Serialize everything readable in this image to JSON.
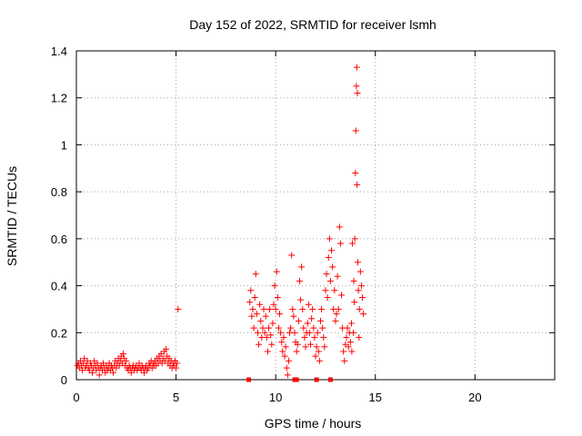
{
  "chart_data": {
    "type": "scatter",
    "title": "Day 152 of 2022, SRMTID for receiver lsmh",
    "xlabel": "GPS time / hours",
    "ylabel": "SRMTID / TECUs",
    "xlim": [
      0,
      24
    ],
    "ylim": [
      0,
      1.4
    ],
    "x_ticks": [
      0,
      5,
      10,
      15,
      20
    ],
    "x_tick_labels": [
      "0",
      "5",
      "10",
      "15",
      "20"
    ],
    "y_ticks": [
      0,
      0.2,
      0.4,
      0.6,
      0.8,
      1.0,
      1.2,
      1.4
    ],
    "y_tick_labels": [
      "0",
      "0.2",
      "0.4",
      "0.6",
      "0.8",
      "1",
      "1.2",
      "1.4"
    ],
    "grid": true,
    "marker": "+",
    "color": "#ff0000",
    "series": [
      {
        "name": "SRMTID",
        "points": [
          [
            0.05,
            0.06
          ],
          [
            0.1,
            0.07
          ],
          [
            0.15,
            0.05
          ],
          [
            0.2,
            0.08
          ],
          [
            0.25,
            0.06
          ],
          [
            0.3,
            0.04
          ],
          [
            0.35,
            0.07
          ],
          [
            0.4,
            0.09
          ],
          [
            0.45,
            0.05
          ],
          [
            0.5,
            0.06
          ],
          [
            0.55,
            0.08
          ],
          [
            0.6,
            0.05
          ],
          [
            0.65,
            0.04
          ],
          [
            0.7,
            0.07
          ],
          [
            0.75,
            0.06
          ],
          [
            0.8,
            0.03
          ],
          [
            0.85,
            0.05
          ],
          [
            0.9,
            0.08
          ],
          [
            0.95,
            0.06
          ],
          [
            1.0,
            0.04
          ],
          [
            1.05,
            0.07
          ],
          [
            1.1,
            0.05
          ],
          [
            1.15,
            0.02
          ],
          [
            1.2,
            0.05
          ],
          [
            1.25,
            0.06
          ],
          [
            1.3,
            0.04
          ],
          [
            1.35,
            0.07
          ],
          [
            1.4,
            0.05
          ],
          [
            1.45,
            0.03
          ],
          [
            1.5,
            0.06
          ],
          [
            1.55,
            0.04
          ],
          [
            1.6,
            0.05
          ],
          [
            1.65,
            0.07
          ],
          [
            1.7,
            0.04
          ],
          [
            1.75,
            0.06
          ],
          [
            1.8,
            0.05
          ],
          [
            1.85,
            0.03
          ],
          [
            1.9,
            0.06
          ],
          [
            1.95,
            0.08
          ],
          [
            2.0,
            0.05
          ],
          [
            2.05,
            0.07
          ],
          [
            2.1,
            0.09
          ],
          [
            2.15,
            0.06
          ],
          [
            2.2,
            0.08
          ],
          [
            2.25,
            0.1
          ],
          [
            2.3,
            0.07
          ],
          [
            2.35,
            0.11
          ],
          [
            2.4,
            0.09
          ],
          [
            2.45,
            0.06
          ],
          [
            2.5,
            0.08
          ],
          [
            2.55,
            0.05
          ],
          [
            2.6,
            0.04
          ],
          [
            2.65,
            0.06
          ],
          [
            2.7,
            0.05
          ],
          [
            2.75,
            0.03
          ],
          [
            2.8,
            0.05
          ],
          [
            2.85,
            0.06
          ],
          [
            2.9,
            0.04
          ],
          [
            2.95,
            0.05
          ],
          [
            3.0,
            0.06
          ],
          [
            3.05,
            0.04
          ],
          [
            3.1,
            0.05
          ],
          [
            3.15,
            0.07
          ],
          [
            3.2,
            0.05
          ],
          [
            3.25,
            0.04
          ],
          [
            3.3,
            0.06
          ],
          [
            3.35,
            0.05
          ],
          [
            3.4,
            0.03
          ],
          [
            3.45,
            0.05
          ],
          [
            3.5,
            0.06
          ],
          [
            3.55,
            0.04
          ],
          [
            3.6,
            0.05
          ],
          [
            3.65,
            0.07
          ],
          [
            3.7,
            0.06
          ],
          [
            3.75,
            0.08
          ],
          [
            3.8,
            0.05
          ],
          [
            3.85,
            0.07
          ],
          [
            3.9,
            0.06
          ],
          [
            3.95,
            0.08
          ],
          [
            4.0,
            0.06
          ],
          [
            4.05,
            0.09
          ],
          [
            4.1,
            0.07
          ],
          [
            4.15,
            0.1
          ],
          [
            4.2,
            0.08
          ],
          [
            4.25,
            0.11
          ],
          [
            4.3,
            0.07
          ],
          [
            4.35,
            0.09
          ],
          [
            4.4,
            0.12
          ],
          [
            4.45,
            0.08
          ],
          [
            4.5,
            0.13
          ],
          [
            4.55,
            0.1
          ],
          [
            4.6,
            0.07
          ],
          [
            4.65,
            0.09
          ],
          [
            4.7,
            0.06
          ],
          [
            4.75,
            0.08
          ],
          [
            4.8,
            0.05
          ],
          [
            4.85,
            0.07
          ],
          [
            4.9,
            0.06
          ],
          [
            4.95,
            0.08
          ],
          [
            5.0,
            0.05
          ],
          [
            5.05,
            0.07
          ],
          [
            5.1,
            0.3
          ],
          [
            8.7,
            0.33
          ],
          [
            8.75,
            0.38
          ],
          [
            8.8,
            0.27
          ],
          [
            8.85,
            0.3
          ],
          [
            8.9,
            0.22
          ],
          [
            8.95,
            0.35
          ],
          [
            9.0,
            0.45
          ],
          [
            9.05,
            0.28
          ],
          [
            9.1,
            0.2
          ],
          [
            9.15,
            0.15
          ],
          [
            9.2,
            0.32
          ],
          [
            9.25,
            0.25
          ],
          [
            9.3,
            0.18
          ],
          [
            9.35,
            0.22
          ],
          [
            9.4,
            0.3
          ],
          [
            9.45,
            0.2
          ],
          [
            9.5,
            0.27
          ],
          [
            9.55,
            0.18
          ],
          [
            9.6,
            0.12
          ],
          [
            9.65,
            0.22
          ],
          [
            9.7,
            0.3
          ],
          [
            9.75,
            0.19
          ],
          [
            9.8,
            0.15
          ],
          [
            9.85,
            0.24
          ],
          [
            9.9,
            0.32
          ],
          [
            9.95,
            0.4
          ],
          [
            10.0,
            0.3
          ],
          [
            10.05,
            0.46
          ],
          [
            10.1,
            0.35
          ],
          [
            10.15,
            0.22
          ],
          [
            10.2,
            0.28
          ],
          [
            10.25,
            0.2
          ],
          [
            10.3,
            0.16
          ],
          [
            10.35,
            0.12
          ],
          [
            10.4,
            0.18
          ],
          [
            10.45,
            0.1
          ],
          [
            10.5,
            0.14
          ],
          [
            10.55,
            0.05
          ],
          [
            10.6,
            0.02
          ],
          [
            10.65,
            0.08
          ],
          [
            10.7,
            0.2
          ],
          [
            10.75,
            0.22
          ],
          [
            10.8,
            0.53
          ],
          [
            10.85,
            0.3
          ],
          [
            10.9,
            0.27
          ],
          [
            10.95,
            0.2
          ],
          [
            11.0,
            0.16
          ],
          [
            11.05,
            0.12
          ],
          [
            11.1,
            0.15
          ],
          [
            11.15,
            0.25
          ],
          [
            11.2,
            0.42
          ],
          [
            11.25,
            0.34
          ],
          [
            11.3,
            0.48
          ],
          [
            11.35,
            0.3
          ],
          [
            11.4,
            0.22
          ],
          [
            11.45,
            0.18
          ],
          [
            11.5,
            0.14
          ],
          [
            11.55,
            0.2
          ],
          [
            11.6,
            0.24
          ],
          [
            11.65,
            0.32
          ],
          [
            11.7,
            0.2
          ],
          [
            11.75,
            0.15
          ],
          [
            11.8,
            0.26
          ],
          [
            11.85,
            0.3
          ],
          [
            11.9,
            0.22
          ],
          [
            11.95,
            0.18
          ],
          [
            12.0,
            0.1
          ],
          [
            12.05,
            0.14
          ],
          [
            12.1,
            0.2
          ],
          [
            12.15,
            0.12
          ],
          [
            12.2,
            0.08
          ],
          [
            12.25,
            0.25
          ],
          [
            12.3,
            0.3
          ],
          [
            12.35,
            0.22
          ],
          [
            12.4,
            0.18
          ],
          [
            12.45,
            0.14
          ],
          [
            12.5,
            0.38
          ],
          [
            12.55,
            0.45
          ],
          [
            12.6,
            0.35
          ],
          [
            12.65,
            0.52
          ],
          [
            12.7,
            0.6
          ],
          [
            12.75,
            0.42
          ],
          [
            12.8,
            0.55
          ],
          [
            12.85,
            0.48
          ],
          [
            12.9,
            0.3
          ],
          [
            12.95,
            0.38
          ],
          [
            13.0,
            0.25
          ],
          [
            13.05,
            0.28
          ],
          [
            13.1,
            0.44
          ],
          [
            13.15,
            0.3
          ],
          [
            13.2,
            0.65
          ],
          [
            13.25,
            0.58
          ],
          [
            13.3,
            0.36
          ],
          [
            13.35,
            0.22
          ],
          [
            13.4,
            0.12
          ],
          [
            13.45,
            0.08
          ],
          [
            13.5,
            0.15
          ],
          [
            13.55,
            0.18
          ],
          [
            13.6,
            0.22
          ],
          [
            13.65,
            0.14
          ],
          [
            13.7,
            0.2
          ],
          [
            13.75,
            0.16
          ],
          [
            13.8,
            0.24
          ],
          [
            13.85,
            0.58
          ],
          [
            13.9,
            0.2
          ],
          [
            13.95,
            0.33
          ],
          [
            14.0,
            0.88
          ],
          [
            14.02,
            1.06
          ],
          [
            14.05,
            1.25
          ],
          [
            14.07,
            1.33
          ],
          [
            14.08,
            0.83
          ],
          [
            14.1,
            1.22
          ],
          [
            14.12,
            0.5
          ],
          [
            14.15,
            0.38
          ],
          [
            14.2,
            0.3
          ],
          [
            14.25,
            0.46
          ],
          [
            14.3,
            0.4
          ],
          [
            14.35,
            0.35
          ],
          [
            14.4,
            0.28
          ],
          [
            13.97,
            0.6
          ],
          [
            13.92,
            0.42
          ],
          [
            13.82,
            0.12
          ],
          [
            14.18,
            0.18
          ]
        ],
        "baseline_squares": [
          8.65,
          10.95,
          11.05,
          12.05,
          12.75
        ]
      }
    ]
  }
}
